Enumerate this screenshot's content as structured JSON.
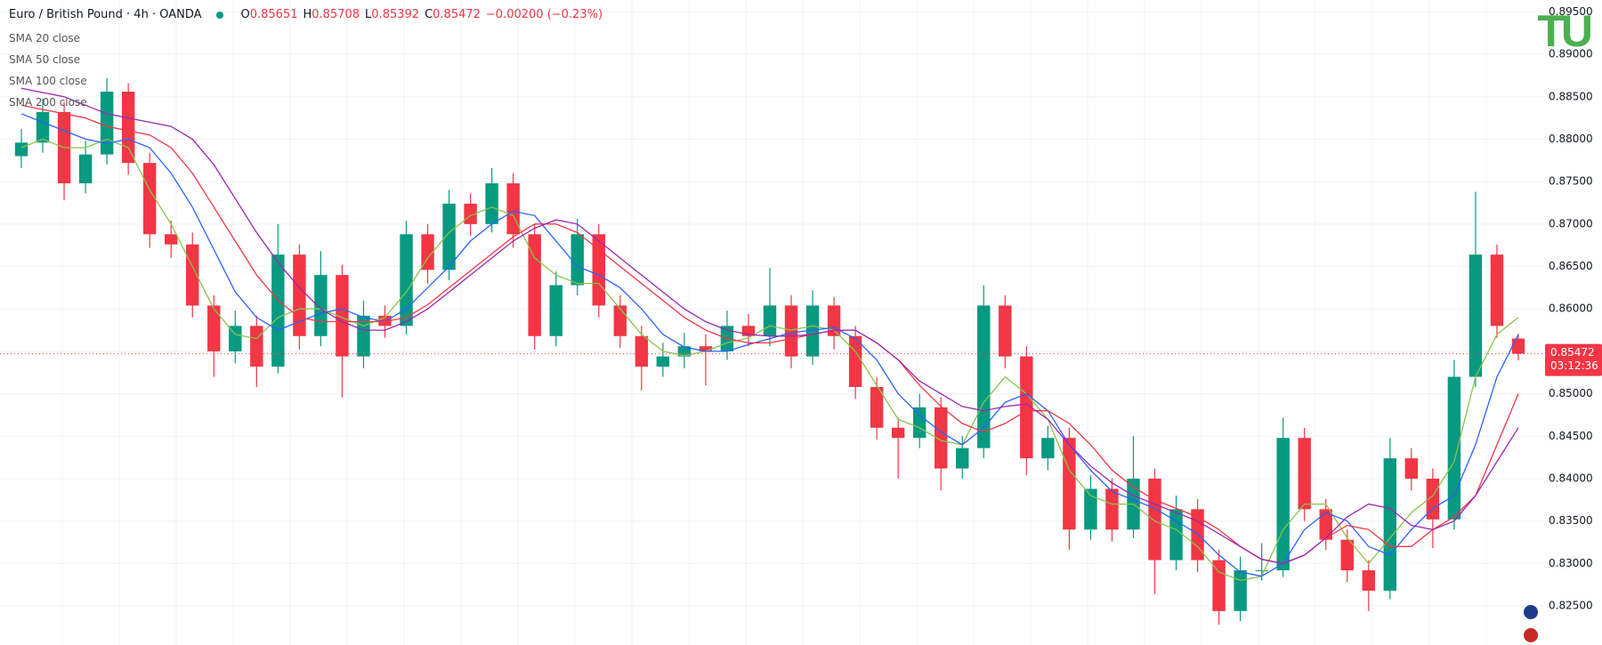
{
  "header": {
    "title": "Euro / British Pound · 4h · OANDA",
    "o_label": "O",
    "open": "0.85651",
    "h_label": "H",
    "high": "0.85708",
    "l_label": "L",
    "low": "0.85392",
    "c_label": "C",
    "close": "0.85472",
    "change": "−0.00200 (−0.23%)"
  },
  "logo": "TU",
  "chart_data": {
    "type": "candlestick",
    "up_color": "#089981",
    "down_color": "#f23645",
    "ylim": [
      0.8204,
      0.8964
    ],
    "yticks": [
      {
        "value": 0.825,
        "label": "0.82500"
      },
      {
        "value": 0.83,
        "label": "0.83000"
      },
      {
        "value": 0.835,
        "label": "0.83500"
      },
      {
        "value": 0.84,
        "label": "0.84000"
      },
      {
        "value": 0.845,
        "label": "0.84500"
      },
      {
        "value": 0.85,
        "label": "0.85000"
      },
      {
        "value": 0.855,
        "label": "0.85500"
      },
      {
        "value": 0.86,
        "label": "0.86000"
      },
      {
        "value": 0.865,
        "label": "0.86500"
      },
      {
        "value": 0.87,
        "label": "0.87000"
      },
      {
        "value": 0.875,
        "label": "0.87500"
      },
      {
        "value": 0.88,
        "label": "0.88000"
      },
      {
        "value": 0.885,
        "label": "0.88500"
      },
      {
        "value": 0.89,
        "label": "0.89000"
      },
      {
        "value": 0.895,
        "label": "0.89500"
      }
    ],
    "grid": true,
    "last_price": 0.85472,
    "countdown": "03:12:36",
    "candles": [
      [
        0.878,
        0.8812,
        0.8766,
        0.8796
      ],
      [
        0.8796,
        0.8848,
        0.8784,
        0.8832
      ],
      [
        0.8832,
        0.8844,
        0.8728,
        0.8748
      ],
      [
        0.8748,
        0.8798,
        0.8736,
        0.8782
      ],
      [
        0.8782,
        0.8872,
        0.877,
        0.8856
      ],
      [
        0.8856,
        0.8866,
        0.8758,
        0.8772
      ],
      [
        0.8772,
        0.8784,
        0.8672,
        0.8688
      ],
      [
        0.8688,
        0.8704,
        0.866,
        0.8676
      ],
      [
        0.8676,
        0.869,
        0.859,
        0.8604
      ],
      [
        0.8604,
        0.8616,
        0.852,
        0.855
      ],
      [
        0.855,
        0.8598,
        0.8536,
        0.858
      ],
      [
        0.858,
        0.8592,
        0.8508,
        0.8532
      ],
      [
        0.8532,
        0.87,
        0.8524,
        0.8664
      ],
      [
        0.8664,
        0.8676,
        0.8552,
        0.8568
      ],
      [
        0.8568,
        0.8668,
        0.8556,
        0.864
      ],
      [
        0.864,
        0.8652,
        0.8496,
        0.8544
      ],
      [
        0.8544,
        0.861,
        0.853,
        0.8592
      ],
      [
        0.8592,
        0.8604,
        0.8566,
        0.858
      ],
      [
        0.858,
        0.8704,
        0.857,
        0.8688
      ],
      [
        0.8688,
        0.87,
        0.863,
        0.8646
      ],
      [
        0.8646,
        0.874,
        0.8634,
        0.8724
      ],
      [
        0.8724,
        0.8736,
        0.8686,
        0.87
      ],
      [
        0.87,
        0.8766,
        0.869,
        0.8748
      ],
      [
        0.8748,
        0.876,
        0.8672,
        0.8688
      ],
      [
        0.8688,
        0.87,
        0.8552,
        0.8568
      ],
      [
        0.8568,
        0.8644,
        0.8556,
        0.8628
      ],
      [
        0.8628,
        0.8706,
        0.8616,
        0.8688
      ],
      [
        0.8688,
        0.87,
        0.859,
        0.8604
      ],
      [
        0.8604,
        0.8616,
        0.8554,
        0.8568
      ],
      [
        0.8568,
        0.858,
        0.8504,
        0.8532
      ],
      [
        0.8532,
        0.856,
        0.852,
        0.8544
      ],
      [
        0.8544,
        0.8572,
        0.853,
        0.8556
      ],
      [
        0.8556,
        0.857,
        0.851,
        0.855
      ],
      [
        0.855,
        0.8598,
        0.854,
        0.858
      ],
      [
        0.858,
        0.8594,
        0.8556,
        0.8568
      ],
      [
        0.8568,
        0.8648,
        0.8556,
        0.8604
      ],
      [
        0.8604,
        0.8616,
        0.853,
        0.8544
      ],
      [
        0.8544,
        0.8622,
        0.8534,
        0.8604
      ],
      [
        0.8604,
        0.8614,
        0.8552,
        0.8568
      ],
      [
        0.8568,
        0.858,
        0.8494,
        0.8508
      ],
      [
        0.8508,
        0.852,
        0.8446,
        0.846
      ],
      [
        0.846,
        0.8472,
        0.84,
        0.8448
      ],
      [
        0.8448,
        0.85,
        0.8436,
        0.8484
      ],
      [
        0.8484,
        0.8496,
        0.8386,
        0.8412
      ],
      [
        0.8412,
        0.845,
        0.84,
        0.8436
      ],
      [
        0.8436,
        0.8628,
        0.8424,
        0.8604
      ],
      [
        0.8604,
        0.8616,
        0.853,
        0.8544
      ],
      [
        0.8544,
        0.8556,
        0.8404,
        0.8424
      ],
      [
        0.8424,
        0.8462,
        0.841,
        0.8448
      ],
      [
        0.8448,
        0.846,
        0.8316,
        0.834
      ],
      [
        0.834,
        0.8404,
        0.8328,
        0.8388
      ],
      [
        0.8388,
        0.84,
        0.8326,
        0.834
      ],
      [
        0.834,
        0.845,
        0.833,
        0.84
      ],
      [
        0.84,
        0.8412,
        0.8264,
        0.8304
      ],
      [
        0.8304,
        0.838,
        0.8292,
        0.8364
      ],
      [
        0.8364,
        0.8376,
        0.829,
        0.8304
      ],
      [
        0.8304,
        0.8316,
        0.8228,
        0.8244
      ],
      [
        0.8244,
        0.8308,
        0.8232,
        0.8292
      ],
      [
        0.8292,
        0.8324,
        0.828,
        0.8292
      ],
      [
        0.8292,
        0.8472,
        0.8284,
        0.8448
      ],
      [
        0.8448,
        0.846,
        0.835,
        0.8364
      ],
      [
        0.8364,
        0.8376,
        0.8316,
        0.8328
      ],
      [
        0.8328,
        0.834,
        0.8278,
        0.8292
      ],
      [
        0.8292,
        0.8304,
        0.8244,
        0.8268
      ],
      [
        0.8268,
        0.8448,
        0.8258,
        0.8424
      ],
      [
        0.8424,
        0.8436,
        0.8386,
        0.84
      ],
      [
        0.84,
        0.8412,
        0.8318,
        0.8352
      ],
      [
        0.8352,
        0.854,
        0.834,
        0.852
      ],
      [
        0.852,
        0.8738,
        0.8508,
        0.8664
      ],
      [
        0.8664,
        0.8676,
        0.8566,
        0.858
      ],
      [
        0.85651,
        0.85708,
        0.85392,
        0.85472
      ]
    ],
    "series": [
      {
        "name": "SMA 20 close",
        "color": "#8bc34a",
        "values": [
          0.879,
          0.88,
          0.879,
          0.879,
          0.88,
          0.879,
          0.874,
          0.87,
          0.865,
          0.86,
          0.857,
          0.8565,
          0.859,
          0.86,
          0.86,
          0.859,
          0.858,
          0.859,
          0.862,
          0.866,
          0.869,
          0.871,
          0.872,
          0.871,
          0.866,
          0.864,
          0.863,
          0.863,
          0.86,
          0.857,
          0.855,
          0.8545,
          0.855,
          0.856,
          0.8566,
          0.858,
          0.8575,
          0.858,
          0.8575,
          0.855,
          0.851,
          0.847,
          0.846,
          0.8445,
          0.844,
          0.849,
          0.852,
          0.85,
          0.847,
          0.841,
          0.838,
          0.837,
          0.837,
          0.835,
          0.834,
          0.832,
          0.829,
          0.828,
          0.8285,
          0.834,
          0.837,
          0.837,
          0.833,
          0.83,
          0.833,
          0.836,
          0.838,
          0.842,
          0.852,
          0.857,
          0.859
        ]
      },
      {
        "name": "SMA 50 close",
        "color": "#2962ff",
        "values": [
          0.883,
          0.882,
          0.881,
          0.88,
          0.8795,
          0.88,
          0.879,
          0.876,
          0.872,
          0.867,
          0.862,
          0.859,
          0.8575,
          0.8585,
          0.8595,
          0.86,
          0.859,
          0.8585,
          0.86,
          0.8625,
          0.865,
          0.868,
          0.87,
          0.8715,
          0.871,
          0.868,
          0.865,
          0.864,
          0.8625,
          0.86,
          0.857,
          0.8555,
          0.855,
          0.855,
          0.8558,
          0.8565,
          0.8572,
          0.8575,
          0.8578,
          0.8565,
          0.854,
          0.85,
          0.8475,
          0.8455,
          0.844,
          0.846,
          0.849,
          0.85,
          0.848,
          0.844,
          0.841,
          0.8385,
          0.8375,
          0.8365,
          0.835,
          0.8335,
          0.831,
          0.829,
          0.8285,
          0.83,
          0.834,
          0.836,
          0.835,
          0.832,
          0.831,
          0.834,
          0.8365,
          0.838,
          0.844,
          0.852,
          0.857
        ]
      },
      {
        "name": "SMA 100 close",
        "color": "#f23645",
        "values": [
          0.884,
          0.8835,
          0.883,
          0.8825,
          0.8815,
          0.881,
          0.8805,
          0.879,
          0.876,
          0.872,
          0.868,
          0.864,
          0.861,
          0.859,
          0.8585,
          0.8585,
          0.8585,
          0.8585,
          0.859,
          0.8605,
          0.8625,
          0.8645,
          0.8665,
          0.8685,
          0.87,
          0.87,
          0.869,
          0.867,
          0.865,
          0.863,
          0.861,
          0.859,
          0.8575,
          0.8565,
          0.856,
          0.856,
          0.8565,
          0.857,
          0.8575,
          0.8575,
          0.856,
          0.854,
          0.851,
          0.8485,
          0.8465,
          0.8455,
          0.8465,
          0.848,
          0.848,
          0.8465,
          0.844,
          0.841,
          0.839,
          0.8375,
          0.8365,
          0.8355,
          0.834,
          0.832,
          0.8305,
          0.83,
          0.831,
          0.833,
          0.8345,
          0.834,
          0.832,
          0.832,
          0.834,
          0.8355,
          0.838,
          0.844,
          0.85
        ]
      },
      {
        "name": "SMA 200 close",
        "color": "#9c27b0",
        "values": [
          0.886,
          0.8855,
          0.885,
          0.884,
          0.883,
          0.8825,
          0.882,
          0.8815,
          0.88,
          0.877,
          0.873,
          0.869,
          0.8655,
          0.8625,
          0.86,
          0.8585,
          0.8575,
          0.8575,
          0.8585,
          0.86,
          0.862,
          0.864,
          0.866,
          0.868,
          0.8695,
          0.8705,
          0.87,
          0.868,
          0.866,
          0.864,
          0.862,
          0.86,
          0.8585,
          0.8575,
          0.857,
          0.8568,
          0.8568,
          0.857,
          0.8575,
          0.8575,
          0.856,
          0.854,
          0.8515,
          0.85,
          0.8485,
          0.848,
          0.8485,
          0.8488,
          0.847,
          0.844,
          0.8415,
          0.8395,
          0.838,
          0.837,
          0.836,
          0.835,
          0.8335,
          0.832,
          0.8305,
          0.83,
          0.831,
          0.833,
          0.8355,
          0.837,
          0.8365,
          0.8345,
          0.834,
          0.835,
          0.838,
          0.842,
          0.846
        ]
      }
    ]
  }
}
